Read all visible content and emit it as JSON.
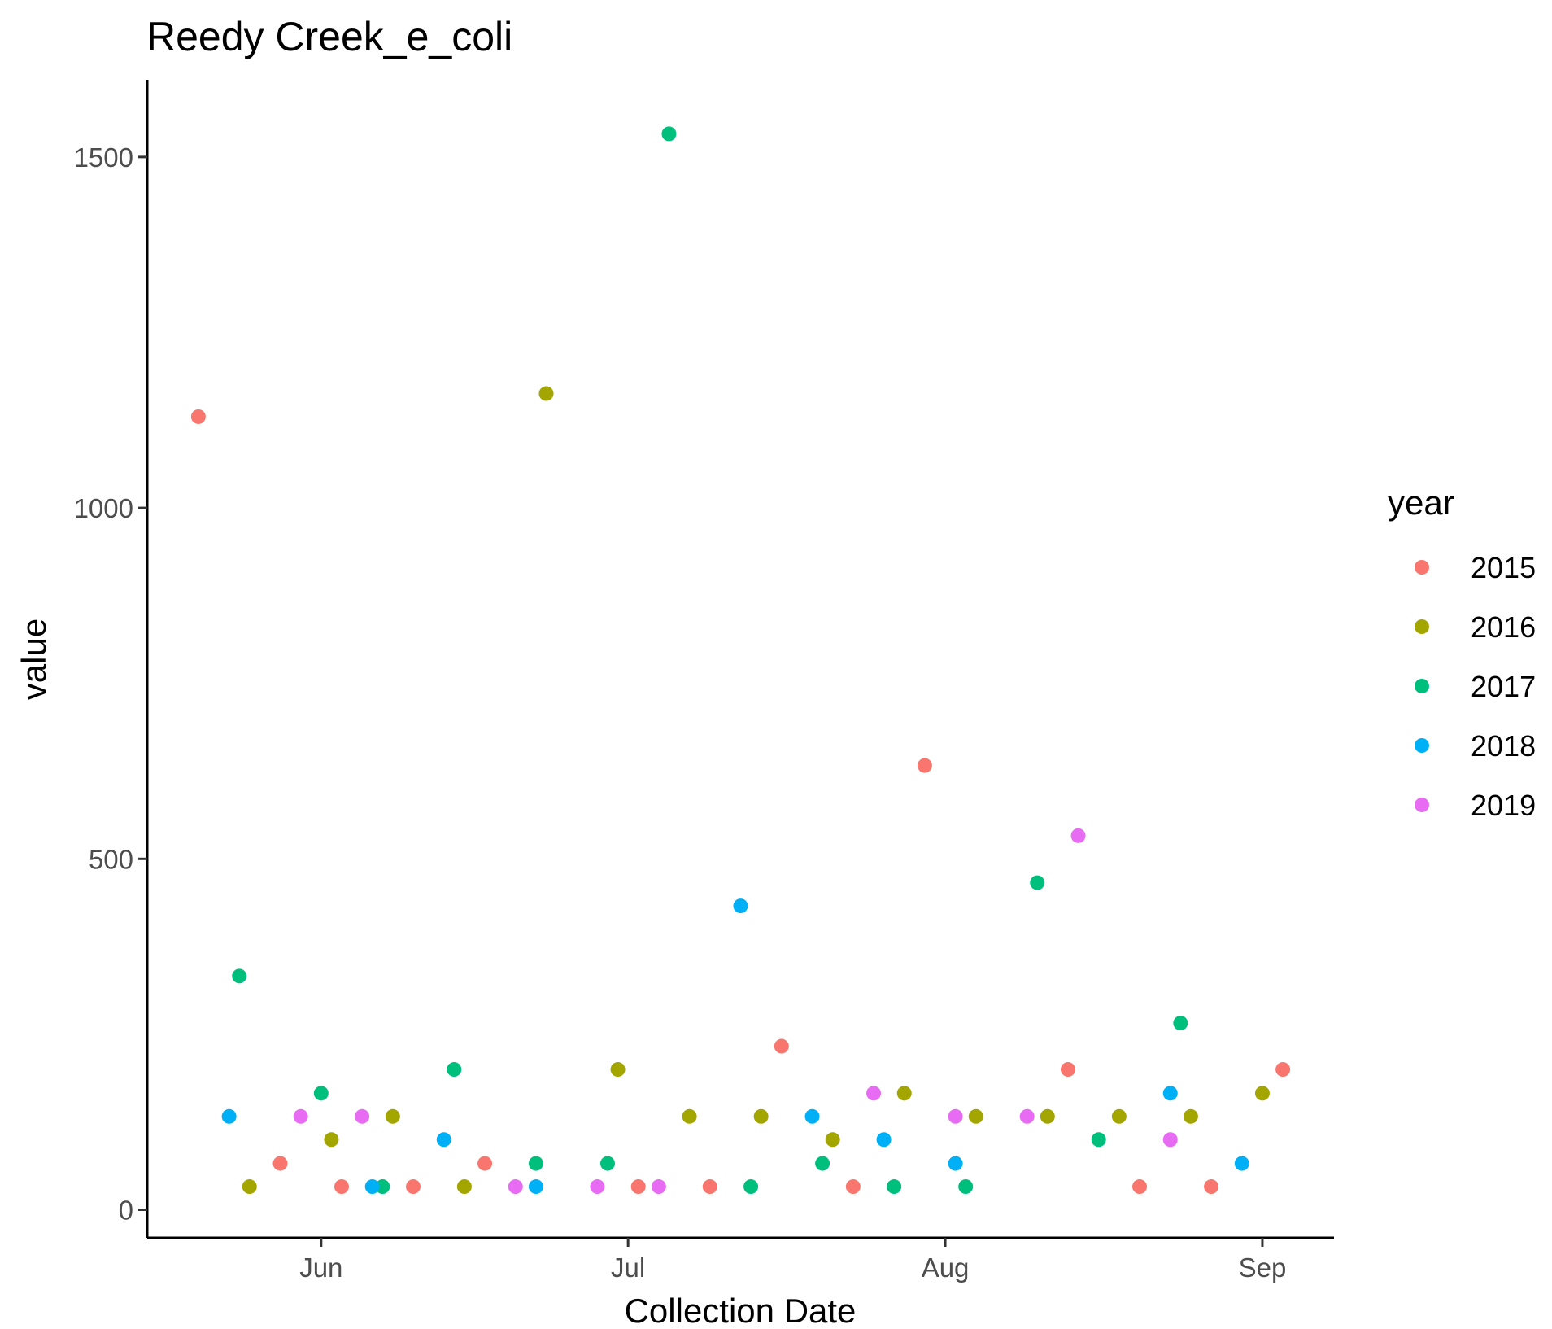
{
  "chart_data": {
    "type": "scatter",
    "title": "Reedy Creek_e_coli",
    "xlabel": "Collection Date",
    "ylabel": "value",
    "x_ticks": [
      {
        "label": "Jun",
        "date": "06-01"
      },
      {
        "label": "Jul",
        "date": "07-01"
      },
      {
        "label": "Aug",
        "date": "08-01"
      },
      {
        "label": "Sep",
        "date": "09-01"
      }
    ],
    "y_ticks": [
      0,
      500,
      1000,
      1500
    ],
    "ylim": [
      -40,
      1610
    ],
    "xlim": [
      "05-15",
      "09-08"
    ],
    "grid": false,
    "legend": {
      "title": "year",
      "position": "right"
    },
    "series": [
      {
        "name": "2015",
        "color": "#F8766D",
        "points": [
          {
            "x": "05-20",
            "y": 1130
          },
          {
            "x": "05-28",
            "y": 66
          },
          {
            "x": "06-03",
            "y": 33
          },
          {
            "x": "06-10",
            "y": 33
          },
          {
            "x": "06-17",
            "y": 66
          },
          {
            "x": "07-02",
            "y": 33
          },
          {
            "x": "07-09",
            "y": 33
          },
          {
            "x": "07-16",
            "y": 233
          },
          {
            "x": "07-23",
            "y": 33
          },
          {
            "x": "07-30",
            "y": 633
          },
          {
            "x": "08-13",
            "y": 200
          },
          {
            "x": "08-20",
            "y": 33
          },
          {
            "x": "08-27",
            "y": 33
          },
          {
            "x": "09-03",
            "y": 200
          }
        ]
      },
      {
        "name": "2016",
        "color": "#A3A500",
        "points": [
          {
            "x": "05-25",
            "y": 33
          },
          {
            "x": "06-02",
            "y": 100
          },
          {
            "x": "06-08",
            "y": 133
          },
          {
            "x": "06-15",
            "y": 33
          },
          {
            "x": "06-23",
            "y": 1163
          },
          {
            "x": "06-30",
            "y": 200
          },
          {
            "x": "07-07",
            "y": 133
          },
          {
            "x": "07-14",
            "y": 133
          },
          {
            "x": "07-21",
            "y": 100
          },
          {
            "x": "07-28",
            "y": 166
          },
          {
            "x": "08-04",
            "y": 133
          },
          {
            "x": "08-11",
            "y": 133
          },
          {
            "x": "08-18",
            "y": 133
          },
          {
            "x": "08-25",
            "y": 133
          },
          {
            "x": "09-01",
            "y": 166
          }
        ]
      },
      {
        "name": "2017",
        "color": "#00BF7D",
        "points": [
          {
            "x": "05-24",
            "y": 333
          },
          {
            "x": "06-01",
            "y": 166
          },
          {
            "x": "06-07",
            "y": 33
          },
          {
            "x": "06-14",
            "y": 200
          },
          {
            "x": "06-22",
            "y": 66
          },
          {
            "x": "06-29",
            "y": 66
          },
          {
            "x": "07-05",
            "y": 1533
          },
          {
            "x": "07-13",
            "y": 33
          },
          {
            "x": "07-20",
            "y": 66
          },
          {
            "x": "07-27",
            "y": 33
          },
          {
            "x": "08-03",
            "y": 33
          },
          {
            "x": "08-10",
            "y": 466
          },
          {
            "x": "08-16",
            "y": 100
          },
          {
            "x": "08-24",
            "y": 266
          }
        ]
      },
      {
        "name": "2018",
        "color": "#00B0F6",
        "points": [
          {
            "x": "05-23",
            "y": 133
          },
          {
            "x": "06-06",
            "y": 33
          },
          {
            "x": "06-13",
            "y": 100
          },
          {
            "x": "06-22",
            "y": 33
          },
          {
            "x": "07-12",
            "y": 433
          },
          {
            "x": "07-19",
            "y": 133
          },
          {
            "x": "07-26",
            "y": 100
          },
          {
            "x": "08-02",
            "y": 66
          },
          {
            "x": "08-23",
            "y": 166
          },
          {
            "x": "08-30",
            "y": 66
          }
        ]
      },
      {
        "name": "2019",
        "color": "#E76BF3",
        "points": [
          {
            "x": "05-30",
            "y": 133
          },
          {
            "x": "06-05",
            "y": 133
          },
          {
            "x": "06-20",
            "y": 33
          },
          {
            "x": "06-28",
            "y": 33
          },
          {
            "x": "07-04",
            "y": 33
          },
          {
            "x": "07-25",
            "y": 166
          },
          {
            "x": "08-02",
            "y": 133
          },
          {
            "x": "08-09",
            "y": 133
          },
          {
            "x": "08-14",
            "y": 533
          },
          {
            "x": "08-23",
            "y": 100
          }
        ]
      }
    ]
  }
}
